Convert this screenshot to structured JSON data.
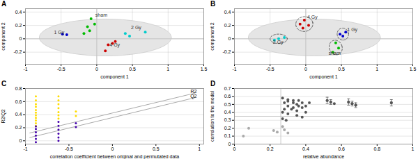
{
  "chart_data": [
    {
      "type": "scatter",
      "title": "A",
      "xlabel": "component 1",
      "ylabel": "component 2",
      "xlim": [
        -1.0,
        1.5
      ],
      "xticks": [
        -1,
        -0.5,
        0,
        0.5,
        1,
        1.5
      ],
      "ylim": [
        -0.38,
        0.45
      ],
      "yticks": [
        -0.2,
        0,
        0.2,
        0.4
      ],
      "grid": true,
      "ellipse": {
        "cx": 0.12,
        "cy": 0.02,
        "width": 1.85,
        "height": 0.55,
        "angle": 0
      },
      "hlines": [
        0
      ],
      "vlines": [
        0
      ],
      "series": [
        {
          "name": "sham",
          "color": "#00bb00",
          "points": [
            [
              -0.08,
              0.3
            ],
            [
              -0.13,
              0.18
            ],
            [
              -0.1,
              0.12
            ],
            [
              -0.18,
              0.08
            ],
            [
              -0.03,
              0.22
            ]
          ],
          "label_at": [
            -0.02,
            0.33
          ]
        },
        {
          "name": "1 Gy",
          "color": "#0000cc",
          "points": [
            [
              -0.48,
              0.07
            ],
            [
              -0.42,
              0.06
            ]
          ],
          "label_at": [
            -0.6,
            0.07
          ]
        },
        {
          "name": "2 Gy",
          "color": "#00cccc",
          "points": [
            [
              0.4,
              0.08
            ],
            [
              0.46,
              0.04
            ],
            [
              0.68,
              0.1
            ]
          ],
          "label_at": [
            0.48,
            0.14
          ]
        },
        {
          "name": "4 Gy",
          "color": "#cc0000",
          "points": [
            [
              0.16,
              -0.09
            ],
            [
              0.22,
              -0.07
            ],
            [
              0.26,
              -0.04
            ],
            [
              0.12,
              -0.18
            ]
          ],
          "label_at": [
            0.18,
            -0.12
          ]
        }
      ]
    },
    {
      "type": "scatter",
      "title": "B",
      "xlabel": "component 1",
      "ylabel": "component 2",
      "xlim": [
        -1.0,
        1.5
      ],
      "xticks": [
        -1,
        -0.5,
        0,
        0.5,
        1,
        1.5
      ],
      "ylim": [
        -0.38,
        0.45
      ],
      "yticks": [
        -0.2,
        0,
        0.2,
        0.4
      ],
      "grid": true,
      "ellipse": {
        "cx": 0.12,
        "cy": 0.02,
        "width": 1.85,
        "height": 0.55,
        "angle": 0
      },
      "hlines": [
        0
      ],
      "vlines": [
        0
      ],
      "series": [
        {
          "name": "sham",
          "color": "#00bb00",
          "points": [
            [
              0.42,
              -0.06
            ],
            [
              0.46,
              -0.14
            ],
            [
              0.38,
              -0.2
            ]
          ],
          "label_at": [
            0.32,
            -0.24
          ],
          "ellipse": {
            "cx": 0.42,
            "cy": -0.13,
            "width": 0.18,
            "height": 0.22,
            "angle": 15
          }
        },
        {
          "name": "1 Gy",
          "color": "#0000cc",
          "points": [
            [
              0.52,
              0.04
            ],
            [
              0.56,
              0.1
            ],
            [
              0.48,
              0.07
            ]
          ],
          "label_at": [
            0.58,
            0.11
          ],
          "ellipse": {
            "cx": 0.52,
            "cy": 0.07,
            "width": 0.16,
            "height": 0.18,
            "angle": 5
          }
        },
        {
          "name": "2 Gy",
          "color": "#00cccc",
          "points": [
            [
              -0.38,
              0.0
            ],
            [
              -0.3,
              0.02
            ],
            [
              -0.44,
              -0.02
            ]
          ],
          "label_at": [
            -0.46,
            -0.07
          ],
          "ellipse": {
            "cx": -0.38,
            "cy": 0.0,
            "width": 0.24,
            "height": 0.14,
            "angle": 0
          }
        },
        {
          "name": "4 Gy",
          "color": "#cc0000",
          "points": [
            [
              -0.08,
              0.22
            ],
            [
              -0.02,
              0.28
            ],
            [
              0.04,
              0.2
            ],
            [
              -0.04,
              0.16
            ]
          ],
          "label_at": [
            0.02,
            0.3
          ],
          "ellipse": {
            "cx": -0.02,
            "cy": 0.22,
            "width": 0.24,
            "height": 0.22,
            "angle": 10
          }
        }
      ]
    },
    {
      "type": "scatter",
      "title": "C",
      "xlabel": "correlation coefficient between original and permutated data",
      "ylabel": "R2/Q2",
      "xlim": [
        -1.0,
        1.05
      ],
      "xticks": [
        -1,
        -0.5,
        0,
        0.5,
        1
      ],
      "ylim": [
        -0.05,
        0.8
      ],
      "yticks": [
        0,
        0.2,
        0.4,
        0.6,
        0.8
      ],
      "grid": "y",
      "series": [
        {
          "color": "#ffdd00",
          "points": [
            [
              -0.88,
              0.68
            ],
            [
              -0.88,
              0.62
            ],
            [
              -0.88,
              0.56
            ],
            [
              -0.88,
              0.52
            ],
            [
              -0.88,
              0.47
            ],
            [
              -0.88,
              0.43
            ],
            [
              -0.88,
              0.39
            ],
            [
              -0.88,
              0.35
            ],
            [
              -0.88,
              0.31
            ],
            [
              -0.88,
              0.27
            ],
            [
              -0.88,
              0.23
            ],
            [
              -0.62,
              0.68
            ],
            [
              -0.62,
              0.62
            ],
            [
              -0.62,
              0.56
            ],
            [
              -0.62,
              0.5
            ],
            [
              -0.62,
              0.44
            ],
            [
              -0.62,
              0.39
            ],
            [
              -0.62,
              0.34
            ],
            [
              -0.42,
              0.45
            ],
            [
              -0.42,
              0.38
            ]
          ]
        },
        {
          "color": "#4400aa",
          "points": [
            [
              -0.88,
              0.22
            ],
            [
              -0.88,
              0.18
            ],
            [
              -0.88,
              0.13
            ],
            [
              -0.88,
              0.08
            ],
            [
              -0.88,
              0.03
            ],
            [
              -0.88,
              -0.02
            ],
            [
              -0.62,
              0.29
            ],
            [
              -0.62,
              0.23
            ],
            [
              -0.62,
              0.17
            ],
            [
              -0.62,
              0.11
            ],
            [
              -0.62,
              0.05
            ],
            [
              -0.62,
              0.0
            ],
            [
              -0.42,
              0.27
            ],
            [
              -0.42,
              0.21
            ]
          ]
        },
        {
          "type": "line",
          "color": "#aaaaaa",
          "points": [
            [
              -0.95,
              0.12
            ],
            [
              0.95,
              0.73
            ]
          ]
        },
        {
          "type": "line",
          "color": "#aaaaaa",
          "points": [
            [
              -0.95,
              0.05
            ],
            [
              0.95,
              0.66
            ]
          ]
        }
      ],
      "annotations": [
        {
          "text": "R2",
          "x": 0.97,
          "y": 0.73
        },
        {
          "text": "Q2",
          "x": 0.97,
          "y": 0.66
        }
      ]
    },
    {
      "type": "scatter",
      "title": "D",
      "xlabel": "relative abundance",
      "ylabel": "correlation to the model",
      "xlim": [
        0.0,
        1.0
      ],
      "xticks": [
        0,
        0.2,
        0.4,
        0.6,
        0.8,
        1
      ],
      "ylim": [
        0.0,
        0.7
      ],
      "yticks": [
        0,
        0.1,
        0.2,
        0.3,
        0.4,
        0.5,
        0.6,
        0.7
      ],
      "grid": "y",
      "hlines": [
        0.35
      ],
      "vlines": [
        0.26
      ],
      "series": [
        {
          "color": "#aaaaaa",
          "points": [
            [
              0.08,
              0.2
            ],
            [
              0.22,
              0.17
            ],
            [
              0.24,
              0.15
            ],
            [
              0.27,
              0.22
            ],
            [
              0.28,
              0.18
            ],
            [
              0.3,
              0.14
            ],
            [
              0.05,
              0.1
            ]
          ]
        },
        {
          "color": "#555555",
          "points": [
            [
              0.27,
              0.58
            ],
            [
              0.3,
              0.56
            ],
            [
              0.33,
              0.55
            ],
            [
              0.36,
              0.55
            ],
            [
              0.3,
              0.54
            ],
            [
              0.28,
              0.52
            ],
            [
              0.33,
              0.52
            ],
            [
              0.38,
              0.52
            ],
            [
              0.42,
              0.52
            ],
            [
              0.35,
              0.5
            ],
            [
              0.3,
              0.48
            ],
            [
              0.36,
              0.48
            ],
            [
              0.4,
              0.48
            ],
            [
              0.33,
              0.46
            ],
            [
              0.38,
              0.46
            ],
            [
              0.28,
              0.44
            ],
            [
              0.32,
              0.44
            ],
            [
              0.35,
              0.42
            ],
            [
              0.4,
              0.4
            ],
            [
              0.27,
              0.4
            ],
            [
              0.3,
              0.38
            ],
            [
              0.35,
              0.36
            ],
            [
              0.38,
              0.34
            ],
            [
              0.27,
              0.32
            ],
            [
              0.29,
              0.3
            ],
            [
              0.52,
              0.55
            ],
            [
              0.54,
              0.53
            ],
            [
              0.56,
              0.51
            ],
            [
              0.64,
              0.53
            ],
            [
              0.66,
              0.51
            ],
            [
              0.68,
              0.49
            ],
            [
              0.88,
              0.52
            ]
          ]
        },
        {
          "color": "#555555",
          "points": [
            [
              0.52,
              0.55
            ],
            [
              0.54,
              0.53
            ],
            [
              0.64,
              0.53
            ],
            [
              0.66,
              0.51
            ],
            [
              0.68,
              0.49
            ],
            [
              0.88,
              0.52
            ]
          ],
          "errors": [
            0.04,
            0.03,
            0.04,
            0.03,
            0.03,
            0.04
          ]
        }
      ]
    }
  ]
}
